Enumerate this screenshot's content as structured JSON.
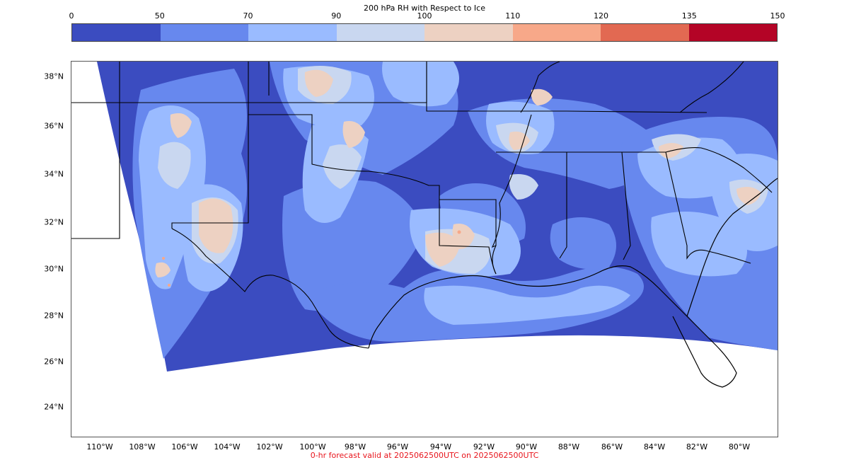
{
  "colorbar": {
    "title": "200 hPa RH with Respect to Ice",
    "ticks": [
      "0",
      "50",
      "70",
      "90",
      "100",
      "110",
      "120",
      "135",
      "150"
    ],
    "colors": [
      "#3b4cc0",
      "#6788ee",
      "#9abbff",
      "#c9d7f0",
      "#edd1c2",
      "#f7a889",
      "#e26952",
      "#b40426"
    ]
  },
  "map": {
    "projection": "Lambert Conformal",
    "lat_labels": [
      "38°N",
      "36°N",
      "34°N",
      "32°N",
      "30°N",
      "28°N",
      "26°N",
      "24°N"
    ],
    "lon_labels": [
      "110°W",
      "108°W",
      "106°W",
      "104°W",
      "102°W",
      "100°W",
      "98°W",
      "96°W",
      "94°W",
      "92°W",
      "90°W",
      "88°W",
      "86°W",
      "84°W",
      "82°W",
      "80°W"
    ],
    "field_colors": {
      "dark_blue": "#3b4cc0",
      "mid_blue": "#6788ee",
      "light_blue": "#9abbff",
      "pale_blue": "#c9d7f0",
      "pale_peach": "#edd1c2",
      "salmon": "#f7a889"
    }
  },
  "caption": {
    "text": "0-hr forecast valid at 2025062500UTC on 2025062500UTC",
    "color": "#e8141c"
  }
}
